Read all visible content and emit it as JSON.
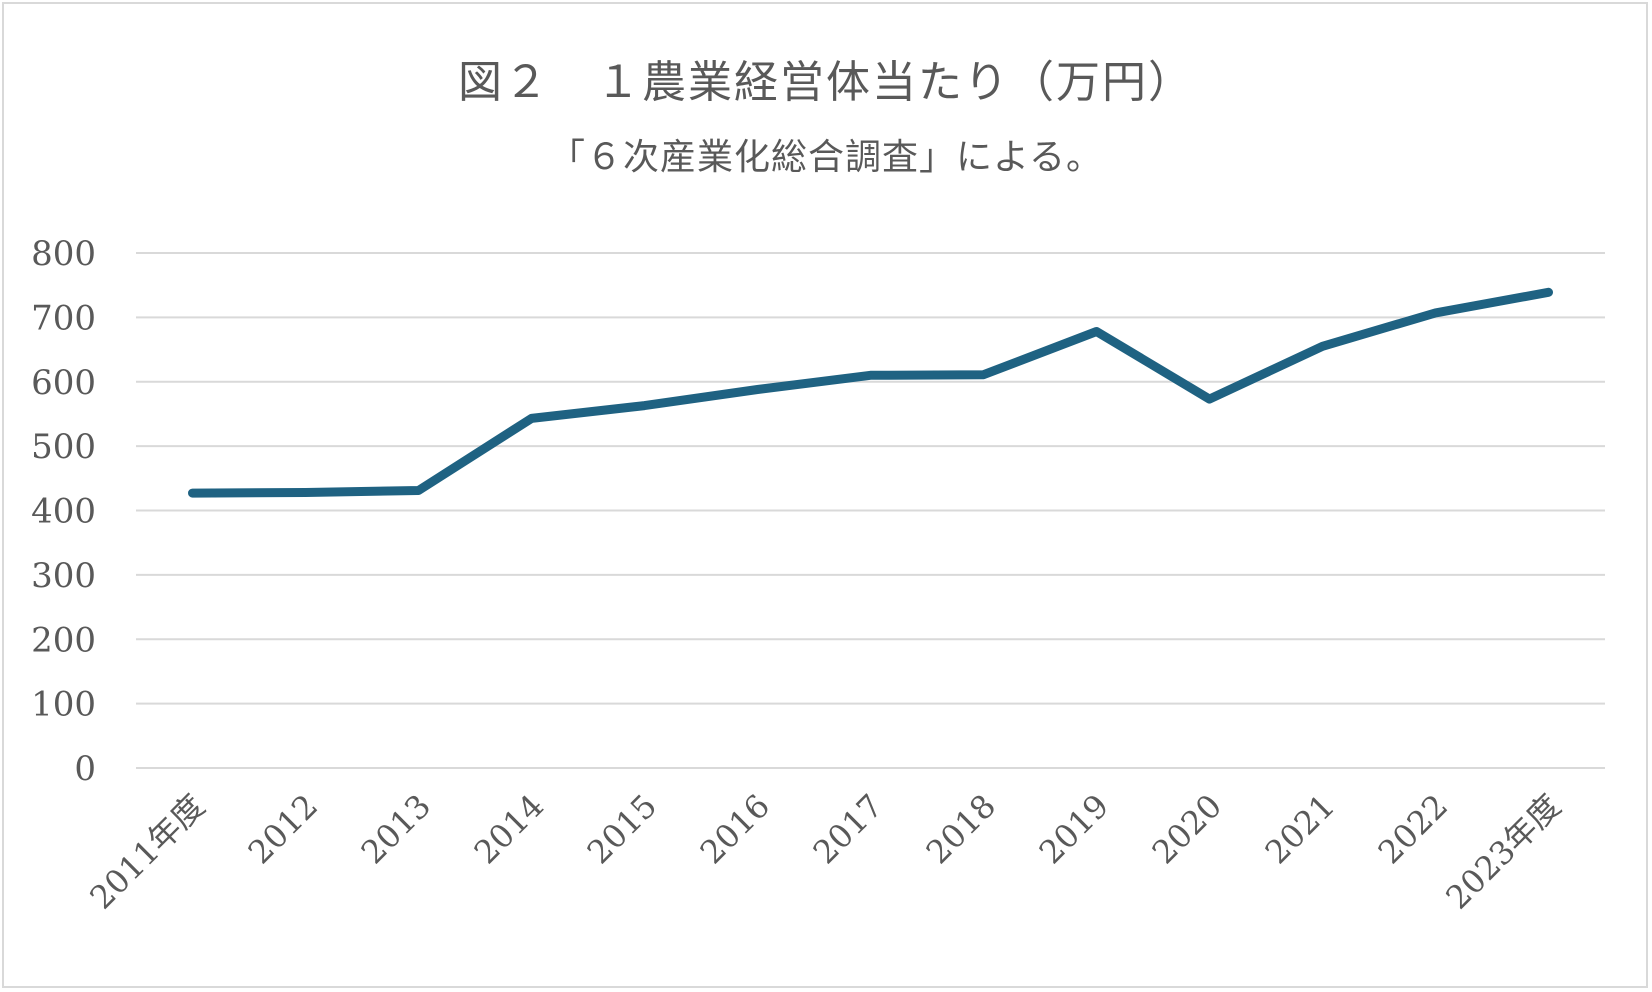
{
  "chart_data": {
    "type": "line",
    "title": "図２　１農業経営体当たり（万円）",
    "subtitle": "「６次産業化総合調査」による。",
    "categories": [
      "2011年度",
      "2012",
      "2013",
      "2014",
      "2015",
      "2016",
      "2017",
      "2018",
      "2019",
      "2020",
      "2021",
      "2022",
      "2023年度"
    ],
    "series": [
      {
        "values": [
          427,
          428,
          431,
          543,
          563,
          588,
          610,
          611,
          678,
          573,
          655,
          707,
          739
        ]
      }
    ],
    "ylim": [
      0,
      800
    ],
    "yticks": [
      0,
      100,
      200,
      300,
      400,
      500,
      600,
      700,
      800
    ],
    "grid": true,
    "legend": "none",
    "line_color": "#1f6282",
    "grid_color": "#d9d9d9"
  }
}
